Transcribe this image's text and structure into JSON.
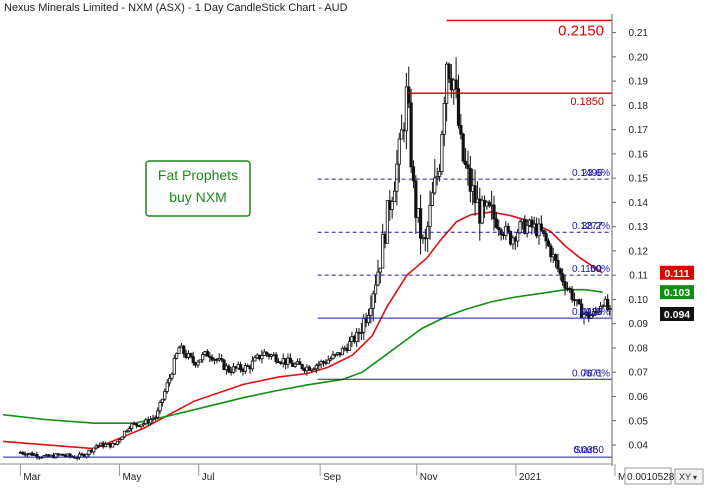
{
  "chart_data": {
    "type": "candlestick",
    "title": "Nexus Minerals Limited - NXM (ASX) - 1 Day CandleStick Chart - AUD",
    "ylim": [
      0.033,
      0.216
    ],
    "yticks": [
      0.04,
      0.05,
      0.06,
      0.07,
      0.08,
      0.09,
      0.1,
      0.11,
      0.12,
      0.13,
      0.14,
      0.15,
      0.16,
      0.17,
      0.18,
      0.19,
      0.2,
      0.21
    ],
    "ytick_labels": [
      "0.04",
      "0.05",
      "0.06",
      "0.07",
      "0.08",
      "0.09",
      "0.10",
      "0.11",
      "0.12",
      "0.13",
      "0.14",
      "0.15",
      "0.16",
      "0.17",
      "0.18",
      "0.19",
      "0.20",
      "0.21"
    ],
    "x_labels": [
      "Mar",
      "May",
      "Jul",
      "Sep",
      "Nov",
      "2021",
      "Mar"
    ],
    "x_label_positions": [
      0,
      2.0,
      3.6,
      6.05,
      8.0,
      10.0,
      12.0
    ],
    "x_range": [
      -0.35,
      12.0
    ],
    "price_path": [
      [
        0.0,
        0.037
      ],
      [
        0.3,
        0.036
      ],
      [
        0.55,
        0.035
      ],
      [
        0.8,
        0.036
      ],
      [
        1.1,
        0.035
      ],
      [
        1.3,
        0.036
      ],
      [
        1.55,
        0.04
      ],
      [
        1.9,
        0.04
      ],
      [
        2.2,
        0.048
      ],
      [
        2.5,
        0.049
      ],
      [
        2.75,
        0.052
      ],
      [
        3.0,
        0.067
      ],
      [
        3.2,
        0.08
      ],
      [
        3.5,
        0.074
      ],
      [
        3.8,
        0.078
      ],
      [
        4.2,
        0.071
      ],
      [
        4.6,
        0.072
      ],
      [
        4.9,
        0.078
      ],
      [
        5.2,
        0.076
      ],
      [
        5.5,
        0.073
      ],
      [
        5.8,
        0.072
      ],
      [
        6.1,
        0.074
      ],
      [
        6.4,
        0.077
      ],
      [
        6.8,
        0.085
      ],
      [
        7.0,
        0.095
      ],
      [
        7.25,
        0.115
      ],
      [
        7.45,
        0.14
      ],
      [
        7.65,
        0.16
      ],
      [
        7.8,
        0.185
      ],
      [
        7.95,
        0.14
      ],
      [
        8.15,
        0.12
      ],
      [
        8.3,
        0.14
      ],
      [
        8.45,
        0.155
      ],
      [
        8.6,
        0.2
      ],
      [
        8.75,
        0.19
      ],
      [
        8.9,
        0.16
      ],
      [
        9.1,
        0.145
      ],
      [
        9.3,
        0.135
      ],
      [
        9.5,
        0.135
      ],
      [
        9.7,
        0.13
      ],
      [
        9.9,
        0.125
      ],
      [
        10.1,
        0.13
      ],
      [
        10.3,
        0.13
      ],
      [
        10.5,
        0.128
      ],
      [
        10.7,
        0.12
      ],
      [
        10.9,
        0.11
      ],
      [
        11.1,
        0.103
      ],
      [
        11.3,
        0.095
      ],
      [
        11.45,
        0.093
      ],
      [
        11.6,
        0.094
      ],
      [
        11.75,
        0.1
      ],
      [
        11.9,
        0.094
      ]
    ],
    "series": [
      {
        "name": "",
        "color": "#e01010",
        "points": [
          [
            -0.35,
            0.0415
          ],
          [
            1.5,
            0.0385
          ],
          [
            2.5,
            0.047
          ],
          [
            3.5,
            0.058
          ],
          [
            4.5,
            0.065
          ],
          [
            5.2,
            0.068
          ],
          [
            5.8,
            0.0695
          ],
          [
            6.2,
            0.072
          ],
          [
            6.7,
            0.077
          ],
          [
            7.1,
            0.085
          ],
          [
            7.4,
            0.097
          ],
          [
            7.8,
            0.11
          ],
          [
            8.2,
            0.117
          ],
          [
            8.5,
            0.125
          ],
          [
            8.8,
            0.132
          ],
          [
            9.1,
            0.135
          ],
          [
            9.5,
            0.136
          ],
          [
            9.9,
            0.1345
          ],
          [
            10.3,
            0.132
          ],
          [
            10.7,
            0.128
          ],
          [
            11.0,
            0.122
          ],
          [
            11.3,
            0.117
          ],
          [
            11.6,
            0.113
          ],
          [
            11.75,
            0.111
          ]
        ]
      },
      {
        "name": "",
        "color": "#109010",
        "points": [
          [
            -0.35,
            0.0525
          ],
          [
            0.5,
            0.0505
          ],
          [
            1.5,
            0.049
          ],
          [
            2.3,
            0.049
          ],
          [
            3.0,
            0.052
          ],
          [
            3.8,
            0.056
          ],
          [
            4.5,
            0.0595
          ],
          [
            5.2,
            0.0625
          ],
          [
            5.8,
            0.0648
          ],
          [
            6.5,
            0.067
          ],
          [
            6.9,
            0.07
          ],
          [
            7.3,
            0.076
          ],
          [
            7.7,
            0.082
          ],
          [
            8.1,
            0.088
          ],
          [
            8.6,
            0.093
          ],
          [
            9.0,
            0.096
          ],
          [
            9.5,
            0.099
          ],
          [
            10.0,
            0.101
          ],
          [
            10.5,
            0.1025
          ],
          [
            11.0,
            0.104
          ],
          [
            11.4,
            0.104
          ],
          [
            11.75,
            0.103
          ]
        ]
      }
    ],
    "fib_levels": [
      {
        "value": 0.215,
        "label": "0.2150",
        "color": "#e00000",
        "style": "solid",
        "x_start": 8.6
      },
      {
        "value": 0.185,
        "label": "0.1850",
        "color": "#c00000",
        "style": "solid",
        "x_start": 7.8
      },
      {
        "value": 0.1496,
        "label": "0.1496",
        "pct": "23.6%",
        "color": "#1a1aa8",
        "style": "dashed",
        "x_start": 6.0
      },
      {
        "value": 0.1277,
        "label": "0.1277",
        "pct": "38.2%",
        "color": "#1a1aa8",
        "style": "dashed",
        "x_start": 6.0
      },
      {
        "value": 0.11,
        "label": "0.1100",
        "pct": "50%",
        "color": "#1a1aa8",
        "style": "dashed",
        "x_start": 6.0
      },
      {
        "value": 0.0923,
        "label": "0.0923",
        "pct": "61.8%",
        "color": "#1a1aa8",
        "style": "solid",
        "x_start": 6.0
      },
      {
        "value": 0.0671,
        "label": "0.0671",
        "pct": "78.6%",
        "color": "#1a1aa8",
        "style": "solid",
        "x_start": 6.0
      },
      {
        "value": 0.035,
        "label": "Start:",
        "label2": "0.0350",
        "color": "#1a1aa8",
        "style": "solid",
        "x_start": -0.35
      }
    ],
    "price_tags": [
      {
        "value": 0.111,
        "label": "0.111",
        "bg": "#e00000"
      },
      {
        "value": 0.103,
        "label": "0.103",
        "bg": "#109010"
      },
      {
        "value": 0.094,
        "label": "0.094",
        "bg": "#111111"
      }
    ],
    "annotation": {
      "line1": "Fat Prophets",
      "line2": "buy NXM",
      "color": "#1a8a1a"
    },
    "bottom_value": "0.0010528",
    "bottom_button": "XY"
  }
}
